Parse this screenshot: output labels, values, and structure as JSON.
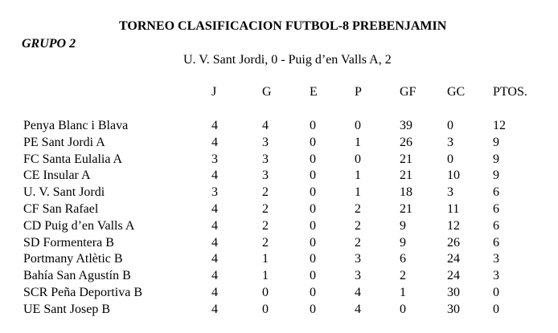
{
  "title": "TORNEO CLASIFICACION FUTBOL-8 PREBENJAMIN",
  "group": "GRUPO 2",
  "match": "U. V. Sant Jordi, 0 - Puig d’en Valls A, 2",
  "columns": [
    "",
    "J",
    "G",
    "E",
    "P",
    "GF",
    "GC",
    "PTOS."
  ],
  "rows": [
    [
      "Penya Blanc i Blava",
      "4",
      "4",
      "0",
      "0",
      "39",
      "0",
      "12"
    ],
    [
      "PE Sant Jordi A",
      "4",
      "3",
      "0",
      "1",
      "26",
      "3",
      "9"
    ],
    [
      "FC Santa Eulalia A",
      "3",
      "3",
      "0",
      "0",
      "21",
      "0",
      "9"
    ],
    [
      "CE Insular A",
      "4",
      "3",
      "0",
      "1",
      "21",
      "10",
      "9"
    ],
    [
      "U. V. Sant Jordi",
      "3",
      "2",
      "0",
      "1",
      "18",
      "3",
      "6"
    ],
    [
      "CF San Rafael",
      "4",
      "2",
      "0",
      "2",
      "21",
      "11",
      "6"
    ],
    [
      "CD Puig d’en Valls A",
      "4",
      "2",
      "0",
      "2",
      "9",
      "12",
      "6"
    ],
    [
      "SD Formentera B",
      "4",
      "2",
      "0",
      "2",
      "9",
      "26",
      "6"
    ],
    [
      "Portmany Atlètic B",
      "4",
      "1",
      "0",
      "3",
      "6",
      "24",
      "3"
    ],
    [
      "Bahía San Agustín B",
      "4",
      "1",
      "0",
      "3",
      "2",
      "24",
      "3"
    ],
    [
      "SCR Peña Deportiva B",
      "4",
      "0",
      "0",
      "4",
      "1",
      "30",
      "0"
    ],
    [
      "UE Sant Josep B",
      "4",
      "0",
      "0",
      "4",
      "0",
      "30",
      "0"
    ]
  ]
}
